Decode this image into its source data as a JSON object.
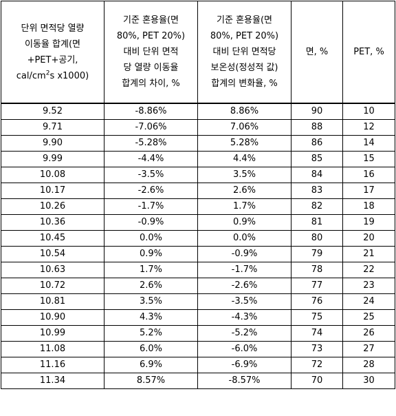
{
  "table": {
    "headers": [
      "단위 면적당 열량 이동율 합계(면 +PET+공기, cal/cm²s x1000)",
      "기준 혼용율(면 80%, PET 20%) 대비 단위 면적당 열량 이동율 합계의 차이, %",
      "기준 혼용율(면 80%, PET 20%) 대비 단위 면적당 보온성(정성적 값) 합계의 변화율, %",
      "면, %",
      "PET, %"
    ],
    "header0": {
      "line1": "단위 면적당 열량",
      "line2": "이동율 합계(면",
      "line3": "+PET+공기,",
      "line4_pre": "cal/cm",
      "line4_sup": "2",
      "line4_post": "s x1000)"
    },
    "header1": {
      "line1": "기준 혼용율(면",
      "line2": "80%, PET 20%)",
      "line3": "대비 단위 면적",
      "line4": "당 열량 이동율",
      "line5": "합계의 차이, %"
    },
    "header2": {
      "line1": "기준 혼용율(면",
      "line2": "80%, PET 20%)",
      "line3": "대비 단위 면적당",
      "line4": "보온성(정성적 값)",
      "line5": "합계의 변화율, %"
    },
    "rows": [
      [
        "9.52",
        "-8.86%",
        "8.86%",
        "90",
        "10"
      ],
      [
        "9.71",
        "-7.06%",
        "7.06%",
        "88",
        "12"
      ],
      [
        "9.90",
        "-5.28%",
        "5.28%",
        "86",
        "14"
      ],
      [
        "9.99",
        "-4.4%",
        "4.4%",
        "85",
        "15"
      ],
      [
        "10.08",
        "-3.5%",
        "3.5%",
        "84",
        "16"
      ],
      [
        "10.17",
        "-2.6%",
        "2.6%",
        "83",
        "17"
      ],
      [
        "10.26",
        "-1.7%",
        "1.7%",
        "82",
        "18"
      ],
      [
        "10.36",
        "-0.9%",
        "0.9%",
        "81",
        "19"
      ],
      [
        "10.45",
        "0.0%",
        "0.0%",
        "80",
        "20"
      ],
      [
        "10.54",
        "0.9%",
        "-0.9%",
        "79",
        "21"
      ],
      [
        "10.63",
        "1.7%",
        "-1.7%",
        "78",
        "22"
      ],
      [
        "10.72",
        "2.6%",
        "-2.6%",
        "77",
        "23"
      ],
      [
        "10.81",
        "3.5%",
        "-3.5%",
        "76",
        "24"
      ],
      [
        "10.90",
        "4.3%",
        "-4.3%",
        "75",
        "25"
      ],
      [
        "10.99",
        "5.2%",
        "-5.2%",
        "74",
        "26"
      ],
      [
        "11.08",
        "6.0%",
        "-6.0%",
        "73",
        "27"
      ],
      [
        "11.16",
        "6.9%",
        "-6.9%",
        "72",
        "28"
      ],
      [
        "11.34",
        "8.57%",
        "-8.57%",
        "70",
        "30"
      ]
    ]
  }
}
